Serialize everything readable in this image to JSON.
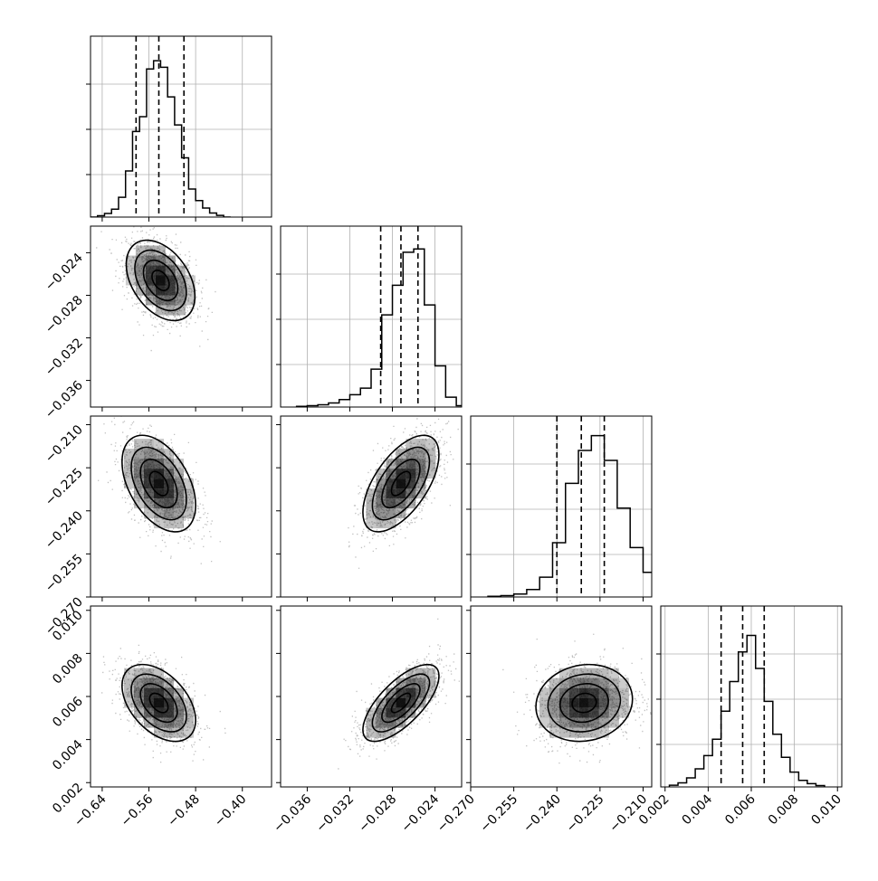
{
  "chart_data": {
    "type": "corner",
    "title": "",
    "parameters": [
      {
        "range": [
          -0.66,
          -0.35
        ],
        "ticks": [
          {
            "value": -0.64,
            "label": "−0.64"
          },
          {
            "value": -0.56,
            "label": "−0.56"
          },
          {
            "value": -0.48,
            "label": "−0.48"
          },
          {
            "value": -0.4,
            "label": "−0.40"
          }
        ],
        "histogram_bins": [
          [
            -0.66,
            0.0
          ],
          [
            -0.648,
            0.008
          ],
          [
            -0.636,
            0.022
          ],
          [
            -0.624,
            0.048
          ],
          [
            -0.612,
            0.12
          ],
          [
            -0.6,
            0.28
          ],
          [
            -0.588,
            0.52
          ],
          [
            -0.576,
            0.61
          ],
          [
            -0.564,
            0.9
          ],
          [
            -0.552,
            0.95
          ],
          [
            -0.54,
            0.91
          ],
          [
            -0.528,
            0.73
          ],
          [
            -0.516,
            0.56
          ],
          [
            -0.504,
            0.36
          ],
          [
            -0.492,
            0.17
          ],
          [
            -0.48,
            0.1
          ],
          [
            -0.468,
            0.055
          ],
          [
            -0.456,
            0.025
          ],
          [
            -0.444,
            0.01
          ],
          [
            -0.432,
            0.0
          ]
        ],
        "quantiles": [
          -0.582,
          -0.543,
          -0.5
        ]
      },
      {
        "range": [
          -0.0385,
          -0.0215
        ],
        "ticks": [
          {
            "value": -0.036,
            "label": "−0.036"
          },
          {
            "value": -0.032,
            "label": "−0.032"
          },
          {
            "value": -0.028,
            "label": "−0.028"
          },
          {
            "value": -0.024,
            "label": "−0.024"
          }
        ],
        "histogram_bins": [
          [
            -0.037,
            0.004
          ],
          [
            -0.036,
            0.008
          ],
          [
            -0.035,
            0.014
          ],
          [
            -0.034,
            0.025
          ],
          [
            -0.033,
            0.045
          ],
          [
            -0.032,
            0.075
          ],
          [
            -0.031,
            0.115
          ],
          [
            -0.03,
            0.23
          ],
          [
            -0.029,
            0.56
          ],
          [
            -0.028,
            0.74
          ],
          [
            -0.027,
            0.94
          ],
          [
            -0.026,
            0.96
          ],
          [
            -0.025,
            0.62
          ],
          [
            -0.024,
            0.25
          ],
          [
            -0.023,
            0.06
          ],
          [
            -0.022,
            0.008
          ]
        ],
        "quantiles": [
          -0.0291,
          -0.0272,
          -0.0256
        ]
      },
      {
        "range": [
          -0.27,
          -0.207
        ],
        "ticks": [
          {
            "value": -0.27,
            "label": "−0.270"
          },
          {
            "value": -0.255,
            "label": "−0.255"
          },
          {
            "value": -0.24,
            "label": "−0.240"
          },
          {
            "value": -0.225,
            "label": "−0.225"
          },
          {
            "value": -0.21,
            "label": "−0.210"
          }
        ],
        "histogram_bins": [
          [
            -0.264,
            0.004
          ],
          [
            -0.2595,
            0.008
          ],
          [
            -0.255,
            0.018
          ],
          [
            -0.2505,
            0.045
          ],
          [
            -0.246,
            0.12
          ],
          [
            -0.2415,
            0.33
          ],
          [
            -0.237,
            0.69
          ],
          [
            -0.2325,
            0.89
          ],
          [
            -0.228,
            0.98
          ],
          [
            -0.2235,
            0.83
          ],
          [
            -0.219,
            0.54
          ],
          [
            -0.2145,
            0.3
          ],
          [
            -0.21,
            0.15
          ],
          [
            -0.2055,
            0.06
          ]
        ],
        "quantiles": [
          -0.24,
          -0.2315,
          -0.2235
        ]
      },
      {
        "range": [
          0.0018,
          0.0102
        ],
        "ticks": [
          {
            "value": 0.002,
            "label": "0.002"
          },
          {
            "value": 0.004,
            "label": "0.004"
          },
          {
            "value": 0.006,
            "label": "0.006"
          },
          {
            "value": 0.008,
            "label": "0.008"
          },
          {
            "value": 0.01,
            "label": "0.010"
          }
        ],
        "histogram_bins": [
          [
            0.0022,
            0.01
          ],
          [
            0.0026,
            0.025
          ],
          [
            0.003,
            0.055
          ],
          [
            0.0034,
            0.11
          ],
          [
            0.0038,
            0.19
          ],
          [
            0.0042,
            0.29
          ],
          [
            0.0046,
            0.46
          ],
          [
            0.005,
            0.64
          ],
          [
            0.0054,
            0.82
          ],
          [
            0.0058,
            0.92
          ],
          [
            0.0062,
            0.72
          ],
          [
            0.0066,
            0.52
          ],
          [
            0.007,
            0.32
          ],
          [
            0.0074,
            0.18
          ],
          [
            0.0078,
            0.09
          ],
          [
            0.0082,
            0.04
          ],
          [
            0.0086,
            0.02
          ],
          [
            0.009,
            0.008
          ]
        ],
        "quantiles": [
          0.0046,
          0.0056,
          0.0066
        ]
      }
    ],
    "pairs": [
      {
        "x_param": 0,
        "y_param": 1,
        "center": [
          -0.54,
          -0.0266
        ],
        "sigma": [
          0.028,
          0.0018
        ],
        "correlation": -0.4
      },
      {
        "x_param": 0,
        "y_param": 2,
        "center": [
          -0.543,
          -0.2305
        ],
        "sigma": [
          0.03,
          0.008
        ],
        "correlation": -0.45
      },
      {
        "x_param": 1,
        "y_param": 2,
        "center": [
          -0.0272,
          -0.2305
        ],
        "sigma": [
          0.0017,
          0.008
        ],
        "correlation": 0.6
      },
      {
        "x_param": 0,
        "y_param": 3,
        "center": [
          -0.543,
          0.0057
        ],
        "sigma": [
          0.03,
          0.00085
        ],
        "correlation": -0.45
      },
      {
        "x_param": 1,
        "y_param": 3,
        "center": [
          -0.0272,
          0.0057
        ],
        "sigma": [
          0.0017,
          0.00085
        ],
        "correlation": 0.7
      },
      {
        "x_param": 2,
        "y_param": 3,
        "center": [
          -0.2305,
          0.0057
        ],
        "sigma": [
          0.008,
          0.00085
        ],
        "correlation": 0.1
      }
    ],
    "contour_levels_sigma": [
      0.5,
      1.0,
      1.5,
      2.0
    ],
    "grid": true,
    "colors": {
      "histogram": "#000000",
      "points": "#8c8c8c",
      "density": "#000000",
      "grid": "#b0b0b0"
    }
  }
}
